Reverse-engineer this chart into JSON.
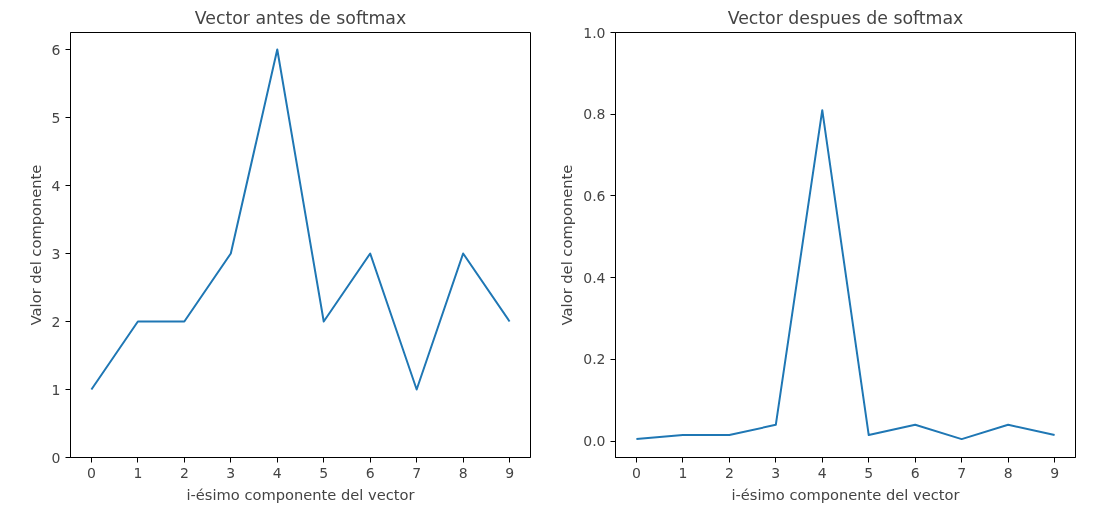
{
  "chart_data": [
    {
      "type": "line",
      "title": "Vector antes de softmax",
      "xlabel": "i-ésimo componente del vector",
      "ylabel": "Valor del componente",
      "x": [
        0,
        1,
        2,
        3,
        4,
        5,
        6,
        7,
        8,
        9
      ],
      "series": [
        {
          "color": "#1f77b4",
          "values": [
            1,
            2,
            2,
            3,
            6,
            2,
            3,
            1,
            3,
            2
          ]
        }
      ],
      "xlim": [
        -0.45,
        9.45
      ],
      "xticks": [
        0,
        1,
        2,
        3,
        4,
        5,
        6,
        7,
        8,
        9
      ],
      "ylim": [
        0,
        6.25
      ],
      "yticks": [
        0,
        1,
        2,
        3,
        4,
        5,
        6
      ],
      "grid": false
    },
    {
      "type": "line",
      "title": "Vector despues de softmax",
      "xlabel": "i-ésimo componente del vector",
      "ylabel": "Valor del componente",
      "x": [
        0,
        1,
        2,
        3,
        4,
        5,
        6,
        7,
        8,
        9
      ],
      "series": [
        {
          "color": "#1f77b4",
          "values": [
            0.005,
            0.015,
            0.015,
            0.04,
            0.81,
            0.015,
            0.04,
            0.005,
            0.04,
            0.015
          ]
        }
      ],
      "xlim": [
        -0.45,
        9.45
      ],
      "xticks": [
        0,
        1,
        2,
        3,
        4,
        5,
        6,
        7,
        8,
        9
      ],
      "ylim": [
        -0.04,
        1.0
      ],
      "yticks": [
        {
          "value": 0,
          "label": "0.0"
        },
        {
          "value": 0.2,
          "label": "0.2"
        },
        {
          "value": 0.4,
          "label": "0.4"
        },
        {
          "value": 0.6,
          "label": "0.6"
        },
        {
          "value": 0.8,
          "label": "0.8"
        },
        {
          "value": 1.0,
          "label": "1.0"
        }
      ],
      "grid": false
    }
  ]
}
